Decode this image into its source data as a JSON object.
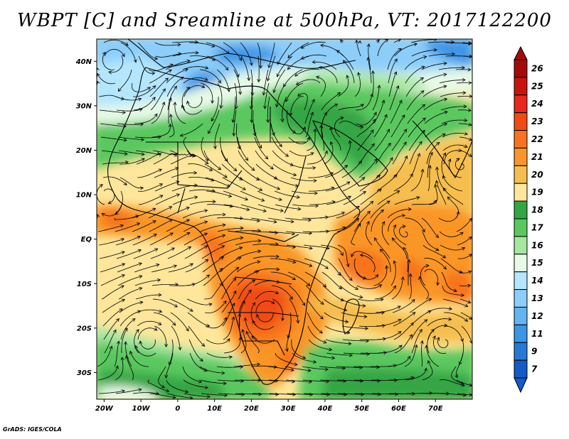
{
  "title": "WBPT [C] and Sreamline at 500hPa, VT: 2017122200",
  "credit": "GrADS: IGES/COLA",
  "map": {
    "lon_range": [
      -22,
      80
    ],
    "lat_range": [
      -36,
      45
    ],
    "lat_ticks": [
      {
        "value": 40,
        "label": "40N"
      },
      {
        "value": 30,
        "label": "30N"
      },
      {
        "value": 20,
        "label": "20N"
      },
      {
        "value": 10,
        "label": "10N"
      },
      {
        "value": 0,
        "label": "EQ"
      },
      {
        "value": -10,
        "label": "10S"
      },
      {
        "value": -20,
        "label": "20S"
      },
      {
        "value": -30,
        "label": "30S"
      }
    ],
    "lon_ticks": [
      {
        "value": -20,
        "label": "20W"
      },
      {
        "value": -10,
        "label": "10W"
      },
      {
        "value": 0,
        "label": "0"
      },
      {
        "value": 10,
        "label": "10E"
      },
      {
        "value": 20,
        "label": "20E"
      },
      {
        "value": 30,
        "label": "30E"
      },
      {
        "value": 40,
        "label": "40E"
      },
      {
        "value": 50,
        "label": "50E"
      },
      {
        "value": 60,
        "label": "60E"
      },
      {
        "value": 70,
        "label": "70E"
      }
    ]
  },
  "colorbar": {
    "levels": [
      {
        "label": "26",
        "color": "#a50a0a"
      },
      {
        "label": "25",
        "color": "#c8140f"
      },
      {
        "label": "24",
        "color": "#e6281e"
      },
      {
        "label": "23",
        "color": "#f04b14"
      },
      {
        "label": "22",
        "color": "#f8731e"
      },
      {
        "label": "21",
        "color": "#fa9628"
      },
      {
        "label": "20",
        "color": "#f5be50"
      },
      {
        "label": "19",
        "color": "#ffe69b"
      },
      {
        "label": "18",
        "color": "#34a544"
      },
      {
        "label": "17",
        "color": "#5ac85f"
      },
      {
        "label": "16",
        "color": "#a5e6a0"
      },
      {
        "label": "15",
        "color": "#e6fae6"
      },
      {
        "label": "14",
        "color": "#b4e6ff"
      },
      {
        "label": "13",
        "color": "#8ccdfa"
      },
      {
        "label": "12",
        "color": "#64b4f0"
      },
      {
        "label": "11",
        "color": "#3c96e6"
      },
      {
        "label": "9",
        "color": "#2878d7"
      },
      {
        "label": "7",
        "color": "#145ac8"
      }
    ],
    "top_color": "#a50a0a",
    "bottom_color": "#145ac8"
  }
}
